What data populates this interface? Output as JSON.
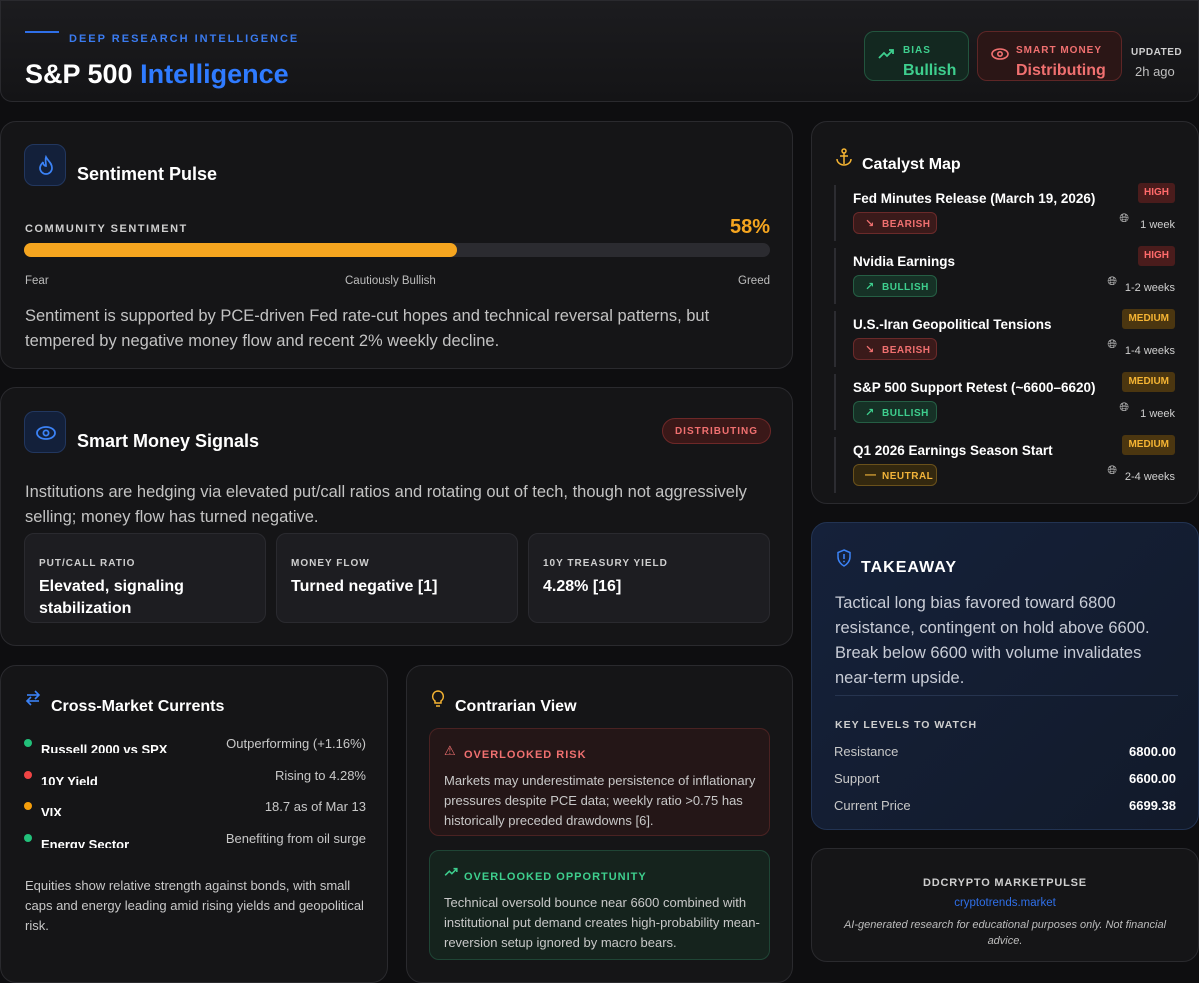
{
  "header": {
    "eyebrow": "DEEP RESEARCH INTELLIGENCE",
    "title_main": "S&P 500",
    "title_accent": "Intelligence",
    "bias_label": "BIAS",
    "bias_value": "Bullish",
    "smart_money_label": "SMART MONEY",
    "smart_money_value": "Distributing",
    "updated_label": "UPDATED",
    "updated_value": "2h ago"
  },
  "sentiment": {
    "title": "Sentiment Pulse",
    "label": "COMMUNITY SENTIMENT",
    "value_text": "58%",
    "value": 58,
    "scale_left": "Fear",
    "scale_mid": "Cautiously Bullish",
    "scale_right": "Greed",
    "description": "Sentiment is supported by PCE-driven Fed rate-cut hopes and technical reversal patterns, but tempered by negative money flow and recent 2% weekly decline."
  },
  "smart_money": {
    "title": "Smart Money Signals",
    "badge": "DISTRIBUTING",
    "description": "Institutions are hedging via elevated put/call ratios and rotating out of tech, though not aggressively selling; money flow has turned negative.",
    "metrics": [
      {
        "label": "PUT/CALL RATIO",
        "value": "Elevated, signaling stabilization"
      },
      {
        "label": "MONEY FLOW",
        "value": "Turned negative [1]"
      },
      {
        "label": "10Y TREASURY YIELD",
        "value": "4.28% [16]"
      }
    ]
  },
  "cross_market": {
    "title": "Cross-Market Currents",
    "rows": [
      {
        "label": "Russell 2000 vs SPX",
        "value": "Outperforming (+1.16%)",
        "color": "#22c07a"
      },
      {
        "label": "10Y Yield",
        "value": "Rising to 4.28%",
        "color": "#ef4444"
      },
      {
        "label": "VIX",
        "value": "18.7 as of Mar 13",
        "color": "#f59e0b"
      },
      {
        "label": "Energy Sector",
        "value": "Benefiting from oil surge",
        "color": "#22c07a"
      }
    ],
    "summary": "Equities show relative strength against bonds, with small caps and energy leading amid rising yields and geopolitical risk."
  },
  "contrarian": {
    "title": "Contrarian View",
    "risk_label": "OVERLOOKED RISK",
    "risk_text": "Markets may underestimate persistence of inflationary pressures despite PCE data; weekly ratio >0.75 has historically preceded drawdowns [6].",
    "opp_label": "OVERLOOKED OPPORTUNITY",
    "opp_text": "Technical oversold bounce near 6600 combined with institutional put demand creates high-probability mean-reversion setup ignored by macro bears."
  },
  "catalysts": {
    "title": "Catalyst Map",
    "items": [
      {
        "title": "Fed Minutes Release (March 19, 2026)",
        "sentiment": "BEARISH",
        "impact": "HIGH",
        "timeframe": "1 week"
      },
      {
        "title": "Nvidia Earnings",
        "sentiment": "BULLISH",
        "impact": "HIGH",
        "timeframe": "1-2 weeks"
      },
      {
        "title": "U.S.-Iran Geopolitical Tensions",
        "sentiment": "BEARISH",
        "impact": "MEDIUM",
        "timeframe": "1-4 weeks"
      },
      {
        "title": "S&P 500 Support Retest (~6600–6620)",
        "sentiment": "BULLISH",
        "impact": "MEDIUM",
        "timeframe": "1 week"
      },
      {
        "title": "Q1 2026 Earnings Season Start",
        "sentiment": "NEUTRAL",
        "impact": "MEDIUM",
        "timeframe": "2-4 weeks"
      }
    ]
  },
  "takeaway": {
    "title": "TAKEAWAY",
    "text": "Tactical long bias favored toward 6800 resistance, contingent on hold above 6600. Break below 6600 with volume invalidates near-term upside.",
    "key_levels_label": "KEY LEVELS TO WATCH",
    "levels": [
      {
        "label": "Resistance",
        "value": "6800.00"
      },
      {
        "label": "Support",
        "value": "6600.00"
      },
      {
        "label": "Current Price",
        "value": "6699.38"
      }
    ]
  },
  "footer": {
    "brand": "DDCRYPTO MARKETPULSE",
    "link": "cryptotrends.market",
    "disclaimer": "AI-generated research for educational purposes only. Not financial advice."
  }
}
